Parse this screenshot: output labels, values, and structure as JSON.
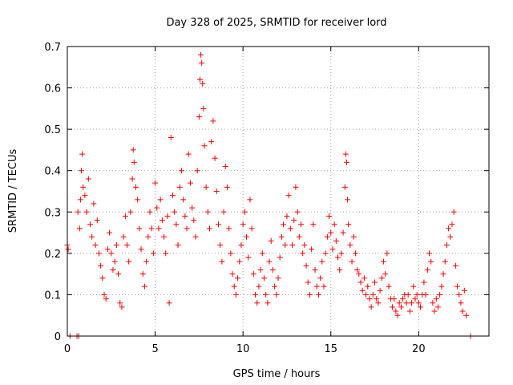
{
  "chart_data": {
    "type": "scatter",
    "title": "Day 328 of 2025, SRMTID for receiver lord",
    "xlabel": "GPS time / hours",
    "ylabel": "SRMTID / TECUs",
    "xlim": [
      0,
      24
    ],
    "ylim": [
      0,
      0.7
    ],
    "xticks": [
      0,
      5,
      10,
      15,
      20
    ],
    "xtick_labels": [
      "0",
      "5",
      "10",
      "15",
      "20"
    ],
    "yticks": [
      0,
      0.1,
      0.2,
      0.3,
      0.4,
      0.5,
      0.6,
      0.7
    ],
    "ytick_labels": [
      "0",
      "0.1",
      "0.2",
      "0.3",
      "0.4",
      "0.5",
      "0.6",
      "0.7"
    ],
    "grid": true,
    "marker": "+",
    "series": [
      {
        "name": "SRMTID",
        "color": "#ff0000",
        "points": [
          [
            0.0,
            0.22
          ],
          [
            0.05,
            0.21
          ],
          [
            0.15,
            0.0
          ],
          [
            0.55,
            0.0
          ],
          [
            0.65,
            0.0
          ],
          [
            22.95,
            0.0
          ],
          [
            0.6,
            0.3
          ],
          [
            0.7,
            0.26
          ],
          [
            0.75,
            0.33
          ],
          [
            0.8,
            0.4
          ],
          [
            0.85,
            0.44
          ],
          [
            0.9,
            0.36
          ],
          [
            1.0,
            0.34
          ],
          [
            1.1,
            0.3
          ],
          [
            1.2,
            0.38
          ],
          [
            1.3,
            0.27
          ],
          [
            1.4,
            0.24
          ],
          [
            1.5,
            0.32
          ],
          [
            1.6,
            0.22
          ],
          [
            1.7,
            0.28
          ],
          [
            1.8,
            0.2
          ],
          [
            1.9,
            0.17
          ],
          [
            2.0,
            0.14
          ],
          [
            2.1,
            0.1
          ],
          [
            2.2,
            0.09
          ],
          [
            2.3,
            0.21
          ],
          [
            2.4,
            0.25
          ],
          [
            2.5,
            0.2
          ],
          [
            2.6,
            0.16
          ],
          [
            2.7,
            0.18
          ],
          [
            2.8,
            0.22
          ],
          [
            2.9,
            0.15
          ],
          [
            3.0,
            0.08
          ],
          [
            3.1,
            0.07
          ],
          [
            3.2,
            0.24
          ],
          [
            3.3,
            0.29
          ],
          [
            3.4,
            0.22
          ],
          [
            3.5,
            0.18
          ],
          [
            3.6,
            0.3
          ],
          [
            3.7,
            0.38
          ],
          [
            3.75,
            0.45
          ],
          [
            3.8,
            0.42
          ],
          [
            3.9,
            0.36
          ],
          [
            4.0,
            0.33
          ],
          [
            4.1,
            0.26
          ],
          [
            4.2,
            0.21
          ],
          [
            4.3,
            0.15
          ],
          [
            4.4,
            0.12
          ],
          [
            4.5,
            0.18
          ],
          [
            4.6,
            0.24
          ],
          [
            4.7,
            0.3
          ],
          [
            4.8,
            0.26
          ],
          [
            4.9,
            0.2
          ],
          [
            5.0,
            0.37
          ],
          [
            5.1,
            0.31
          ],
          [
            5.2,
            0.26
          ],
          [
            5.3,
            0.33
          ],
          [
            5.4,
            0.28
          ],
          [
            5.5,
            0.24
          ],
          [
            5.6,
            0.2
          ],
          [
            5.7,
            0.29
          ],
          [
            5.8,
            0.08
          ],
          [
            5.9,
            0.48
          ],
          [
            6.0,
            0.34
          ],
          [
            6.1,
            0.3
          ],
          [
            6.2,
            0.27
          ],
          [
            6.3,
            0.22
          ],
          [
            6.4,
            0.36
          ],
          [
            6.5,
            0.4
          ],
          [
            6.6,
            0.33
          ],
          [
            6.7,
            0.29
          ],
          [
            6.8,
            0.26
          ],
          [
            6.9,
            0.44
          ],
          [
            7.0,
            0.37
          ],
          [
            7.1,
            0.31
          ],
          [
            7.2,
            0.28
          ],
          [
            7.3,
            0.24
          ],
          [
            7.4,
            0.4
          ],
          [
            7.5,
            0.53
          ],
          [
            7.55,
            0.62
          ],
          [
            7.6,
            0.68
          ],
          [
            7.65,
            0.66
          ],
          [
            7.7,
            0.61
          ],
          [
            7.75,
            0.55
          ],
          [
            7.8,
            0.46
          ],
          [
            7.9,
            0.36
          ],
          [
            8.0,
            0.3
          ],
          [
            8.1,
            0.26
          ],
          [
            8.2,
            0.47
          ],
          [
            8.3,
            0.52
          ],
          [
            8.4,
            0.43
          ],
          [
            8.5,
            0.35
          ],
          [
            8.6,
            0.27
          ],
          [
            8.7,
            0.22
          ],
          [
            8.8,
            0.18
          ],
          [
            8.9,
            0.3
          ],
          [
            9.0,
            0.41
          ],
          [
            9.1,
            0.36
          ],
          [
            9.2,
            0.26
          ],
          [
            9.3,
            0.2
          ],
          [
            9.4,
            0.15
          ],
          [
            9.5,
            0.12
          ],
          [
            9.6,
            0.1
          ],
          [
            9.7,
            0.14
          ],
          [
            9.8,
            0.18
          ],
          [
            9.9,
            0.22
          ],
          [
            10.0,
            0.27
          ],
          [
            10.1,
            0.3
          ],
          [
            10.2,
            0.24
          ],
          [
            10.3,
            0.19
          ],
          [
            10.4,
            0.33
          ],
          [
            10.5,
            0.26
          ],
          [
            10.6,
            0.15
          ],
          [
            10.7,
            0.1
          ],
          [
            10.8,
            0.08
          ],
          [
            10.9,
            0.12
          ],
          [
            11.0,
            0.16
          ],
          [
            11.1,
            0.2
          ],
          [
            11.2,
            0.14
          ],
          [
            11.3,
            0.1
          ],
          [
            11.4,
            0.08
          ],
          [
            11.5,
            0.18
          ],
          [
            11.6,
            0.23
          ],
          [
            11.7,
            0.16
          ],
          [
            11.8,
            0.12
          ],
          [
            11.9,
            0.1
          ],
          [
            12.0,
            0.14
          ],
          [
            12.1,
            0.19
          ],
          [
            12.2,
            0.24
          ],
          [
            12.3,
            0.27
          ],
          [
            12.4,
            0.22
          ],
          [
            12.5,
            0.29
          ],
          [
            12.6,
            0.34
          ],
          [
            12.7,
            0.26
          ],
          [
            12.8,
            0.22
          ],
          [
            12.9,
            0.28
          ],
          [
            13.0,
            0.36
          ],
          [
            13.1,
            0.3
          ],
          [
            13.2,
            0.24
          ],
          [
            13.3,
            0.27
          ],
          [
            13.4,
            0.2
          ],
          [
            13.5,
            0.22
          ],
          [
            13.6,
            0.17
          ],
          [
            13.7,
            0.13
          ],
          [
            13.8,
            0.1
          ],
          [
            13.9,
            0.21
          ],
          [
            14.0,
            0.27
          ],
          [
            14.1,
            0.16
          ],
          [
            14.2,
            0.12
          ],
          [
            14.3,
            0.1
          ],
          [
            14.4,
            0.14
          ],
          [
            14.5,
            0.18
          ],
          [
            14.6,
            0.12
          ],
          [
            14.7,
            0.2
          ],
          [
            14.8,
            0.24
          ],
          [
            14.9,
            0.29
          ],
          [
            15.0,
            0.25
          ],
          [
            15.1,
            0.21
          ],
          [
            15.2,
            0.27
          ],
          [
            15.3,
            0.23
          ],
          [
            15.4,
            0.19
          ],
          [
            15.5,
            0.16
          ],
          [
            15.6,
            0.2
          ],
          [
            15.7,
            0.25
          ],
          [
            15.8,
            0.36
          ],
          [
            15.85,
            0.44
          ],
          [
            15.9,
            0.42
          ],
          [
            15.95,
            0.33
          ],
          [
            16.0,
            0.27
          ],
          [
            16.1,
            0.22
          ],
          [
            16.2,
            0.18
          ],
          [
            16.3,
            0.24
          ],
          [
            16.4,
            0.2
          ],
          [
            16.5,
            0.16
          ],
          [
            16.6,
            0.15
          ],
          [
            16.7,
            0.13
          ],
          [
            16.8,
            0.11
          ],
          [
            16.9,
            0.14
          ],
          [
            17.0,
            0.1
          ],
          [
            17.1,
            0.12
          ],
          [
            17.2,
            0.09
          ],
          [
            17.3,
            0.07
          ],
          [
            17.4,
            0.1
          ],
          [
            17.5,
            0.13
          ],
          [
            17.6,
            0.09
          ],
          [
            17.7,
            0.08
          ],
          [
            17.8,
            0.11
          ],
          [
            17.9,
            0.14
          ],
          [
            18.0,
            0.18
          ],
          [
            18.1,
            0.15
          ],
          [
            18.2,
            0.2
          ],
          [
            18.3,
            0.12
          ],
          [
            18.4,
            0.09
          ],
          [
            18.5,
            0.07
          ],
          [
            18.6,
            0.09
          ],
          [
            18.7,
            0.06
          ],
          [
            18.8,
            0.05
          ],
          [
            18.9,
            0.08
          ],
          [
            19.0,
            0.07
          ],
          [
            19.1,
            0.09
          ],
          [
            19.2,
            0.1
          ],
          [
            19.3,
            0.08
          ],
          [
            19.4,
            0.1
          ],
          [
            19.5,
            0.06
          ],
          [
            19.6,
            0.08
          ],
          [
            19.7,
            0.12
          ],
          [
            19.8,
            0.09
          ],
          [
            19.9,
            0.1
          ],
          [
            20.0,
            0.08
          ],
          [
            20.1,
            0.07
          ],
          [
            20.2,
            0.1
          ],
          [
            20.3,
            0.13
          ],
          [
            20.4,
            0.1
          ],
          [
            20.5,
            0.16
          ],
          [
            20.6,
            0.2
          ],
          [
            20.7,
            0.18
          ],
          [
            20.8,
            0.08
          ],
          [
            20.9,
            0.06
          ],
          [
            21.0,
            0.09
          ],
          [
            21.1,
            0.07
          ],
          [
            21.2,
            0.1
          ],
          [
            21.3,
            0.12
          ],
          [
            21.4,
            0.15
          ],
          [
            21.5,
            0.18
          ],
          [
            21.6,
            0.22
          ],
          [
            21.7,
            0.26
          ],
          [
            21.8,
            0.24
          ],
          [
            21.9,
            0.27
          ],
          [
            22.0,
            0.3
          ],
          [
            22.1,
            0.17
          ],
          [
            22.2,
            0.12
          ],
          [
            22.3,
            0.1
          ],
          [
            22.4,
            0.08
          ],
          [
            22.5,
            0.06
          ],
          [
            22.6,
            0.11
          ],
          [
            22.7,
            0.05
          ]
        ]
      }
    ]
  }
}
